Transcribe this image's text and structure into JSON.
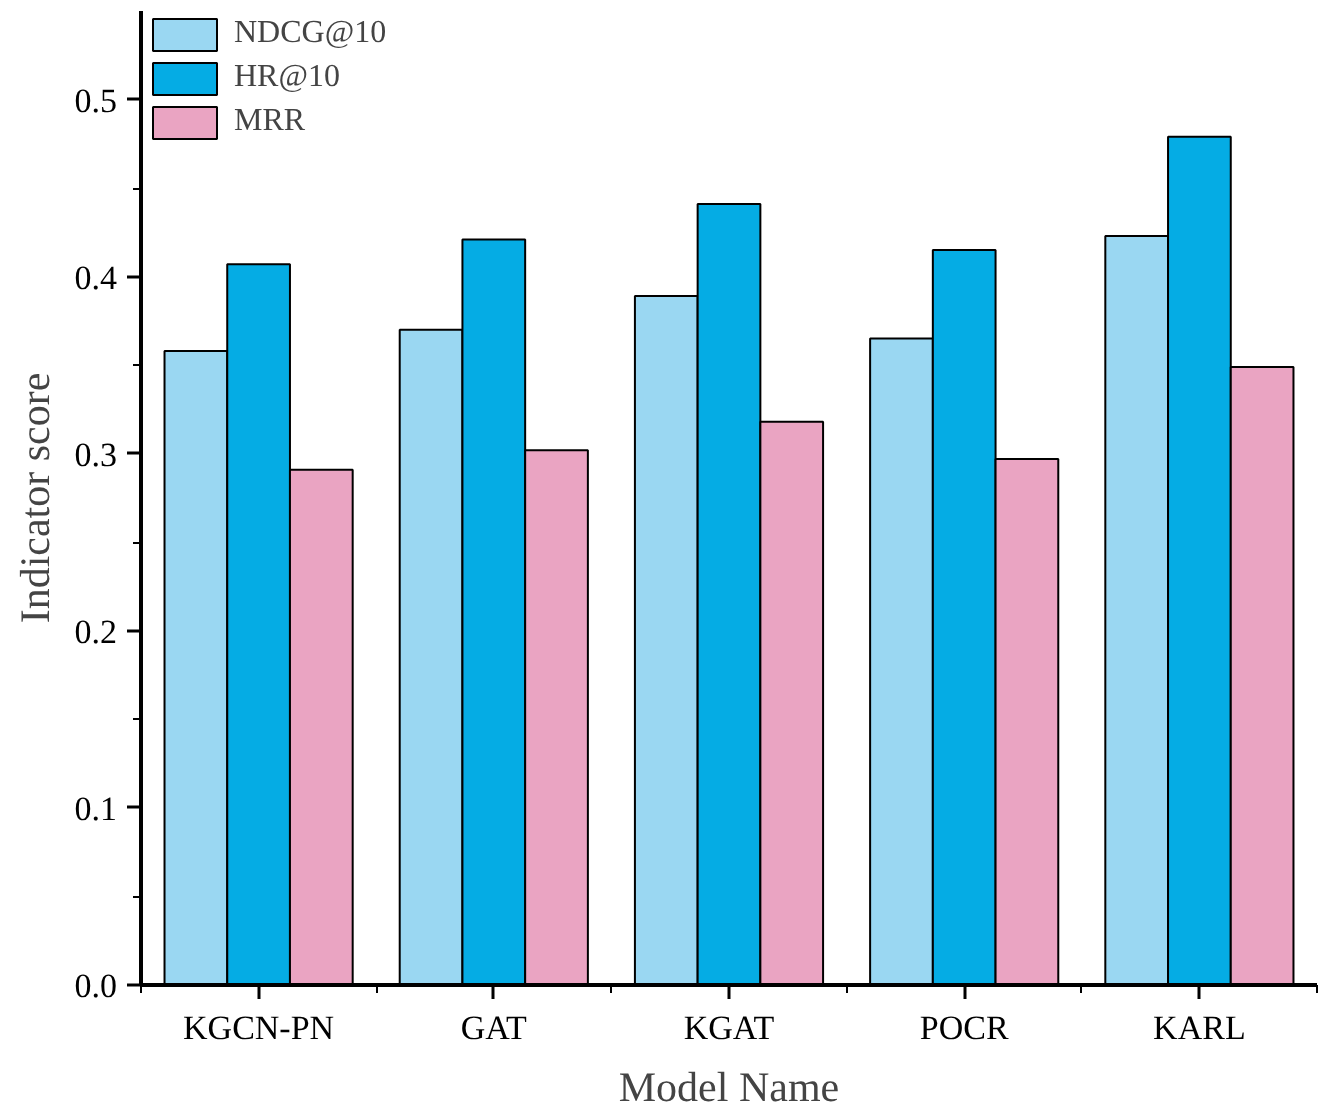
{
  "chart_data": {
    "type": "bar",
    "xlabel": "Model Name",
    "ylabel": "Indicator score",
    "categories": [
      "KGCN-PN",
      "GAT",
      "KGAT",
      "POCR",
      "KARL"
    ],
    "series": [
      {
        "name": "NDCG@10",
        "color": "#9ad7f2",
        "values": [
          0.358,
          0.37,
          0.389,
          0.365,
          0.423
        ]
      },
      {
        "name": "HR@10",
        "color": "#05ace4",
        "values": [
          0.407,
          0.421,
          0.441,
          0.415,
          0.479
        ]
      },
      {
        "name": "MRR",
        "color": "#eaa4c2",
        "values": [
          0.291,
          0.302,
          0.318,
          0.297,
          0.349
        ]
      }
    ],
    "ylim": [
      0,
      0.55
    ],
    "yticks": [
      {
        "value": 0,
        "label": "0.0"
      },
      0.1,
      0.2,
      0.3,
      0.4,
      0.5
    ],
    "grid": false,
    "legend": "top left"
  }
}
